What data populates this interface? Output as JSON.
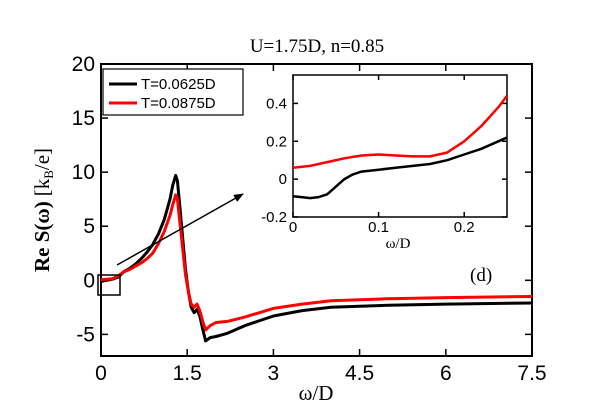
{
  "chart_data": [
    {
      "type": "line",
      "panel_label": "(d)",
      "title": "U=1.75D, n=0.85",
      "xlabel": "ω/D",
      "ylabel_main": "Re S(ω)",
      "ylabel_unit": "[k",
      "ylabel_sub": "B",
      "ylabel_end": "/e]",
      "xlim": [
        0,
        7.5
      ],
      "ylim": [
        -7,
        20
      ],
      "xticks": [
        0,
        1.5,
        3,
        4.5,
        6,
        7.5
      ],
      "xtick_labels": [
        "0",
        "1.5",
        "3",
        "4.5",
        "6",
        "7.5"
      ],
      "yticks": [
        -5,
        0,
        5,
        10,
        15,
        20
      ],
      "ytick_labels": [
        "-5",
        "0",
        "5",
        "10",
        "15",
        "20"
      ],
      "legend": "top-left",
      "series": [
        {
          "name": "T=0.0625D",
          "color": "#000000",
          "points": [
            [
              0,
              -0.1
            ],
            [
              0.1,
              0
            ],
            [
              0.2,
              0.1
            ],
            [
              0.3,
              0.3
            ],
            [
              0.4,
              0.8
            ],
            [
              0.5,
              1.1
            ],
            [
              0.6,
              1.5
            ],
            [
              0.7,
              2
            ],
            [
              0.8,
              2.6
            ],
            [
              0.9,
              3.3
            ],
            [
              1.0,
              4.3
            ],
            [
              1.1,
              5.6
            ],
            [
              1.2,
              7.5
            ],
            [
              1.25,
              8.8
            ],
            [
              1.3,
              9.7
            ],
            [
              1.33,
              9.2
            ],
            [
              1.37,
              7
            ],
            [
              1.42,
              4
            ],
            [
              1.47,
              1
            ],
            [
              1.52,
              -1
            ],
            [
              1.57,
              -2.5
            ],
            [
              1.62,
              -3
            ],
            [
              1.67,
              -2.7
            ],
            [
              1.72,
              -3.3
            ],
            [
              1.77,
              -4.5
            ],
            [
              1.82,
              -5.6
            ],
            [
              1.9,
              -5.3
            ],
            [
              2.0,
              -5.2
            ],
            [
              2.2,
              -4.9
            ],
            [
              2.5,
              -4.2
            ],
            [
              3.0,
              -3.3
            ],
            [
              3.5,
              -2.8
            ],
            [
              4.0,
              -2.5
            ],
            [
              4.5,
              -2.4
            ],
            [
              5.0,
              -2.3
            ],
            [
              6.0,
              -2.2
            ],
            [
              7.5,
              -2.1
            ]
          ]
        },
        {
          "name": "T=0.0875D",
          "color": "#ff0000",
          "points": [
            [
              0,
              0.05
            ],
            [
              0.1,
              0.1
            ],
            [
              0.2,
              0.15
            ],
            [
              0.3,
              0.4
            ],
            [
              0.4,
              0.8
            ],
            [
              0.5,
              1.0
            ],
            [
              0.6,
              1.3
            ],
            [
              0.7,
              1.6
            ],
            [
              0.8,
              2.0
            ],
            [
              0.9,
              2.5
            ],
            [
              1.0,
              3.4
            ],
            [
              1.1,
              4.5
            ],
            [
              1.2,
              6.0
            ],
            [
              1.25,
              7.0
            ],
            [
              1.3,
              7.9
            ],
            [
              1.33,
              7.5
            ],
            [
              1.37,
              5.5
            ],
            [
              1.42,
              3
            ],
            [
              1.47,
              0.5
            ],
            [
              1.52,
              -1
            ],
            [
              1.57,
              -2.2
            ],
            [
              1.62,
              -2.5
            ],
            [
              1.67,
              -2.2
            ],
            [
              1.72,
              -2.8
            ],
            [
              1.77,
              -3.8
            ],
            [
              1.82,
              -4.6
            ],
            [
              1.9,
              -4.2
            ],
            [
              2.0,
              -3.9
            ],
            [
              2.2,
              -3.8
            ],
            [
              2.5,
              -3.4
            ],
            [
              3.0,
              -2.6
            ],
            [
              3.5,
              -2.2
            ],
            [
              4.0,
              -1.9
            ],
            [
              4.5,
              -1.8
            ],
            [
              5.0,
              -1.7
            ],
            [
              6.0,
              -1.6
            ],
            [
              7.5,
              -1.5
            ]
          ]
        }
      ]
    },
    {
      "type": "line",
      "role": "inset",
      "xlabel": "ω/D",
      "xlim": [
        0,
        0.25
      ],
      "ylim": [
        -0.2,
        0.55
      ],
      "xticks": [
        0,
        0.1,
        0.2
      ],
      "xtick_labels": [
        "0",
        "0.1",
        "0.2"
      ],
      "yticks": [
        -0.2,
        0,
        0.2,
        0.4
      ],
      "ytick_labels": [
        "-0.2",
        "0",
        "0.2",
        "0.4"
      ],
      "series": [
        {
          "name": "T=0.0625D",
          "color": "#000000",
          "points": [
            [
              0,
              -0.09
            ],
            [
              0.01,
              -0.095
            ],
            [
              0.02,
              -0.1
            ],
            [
              0.03,
              -0.095
            ],
            [
              0.04,
              -0.08
            ],
            [
              0.05,
              -0.04
            ],
            [
              0.06,
              0
            ],
            [
              0.07,
              0.025
            ],
            [
              0.08,
              0.04
            ],
            [
              0.1,
              0.05
            ],
            [
              0.12,
              0.06
            ],
            [
              0.14,
              0.07
            ],
            [
              0.16,
              0.08
            ],
            [
              0.18,
              0.1
            ],
            [
              0.2,
              0.13
            ],
            [
              0.22,
              0.16
            ],
            [
              0.24,
              0.2
            ],
            [
              0.25,
              0.22
            ]
          ]
        },
        {
          "name": "T=0.0875D",
          "color": "#ff0000",
          "points": [
            [
              0,
              0.06
            ],
            [
              0.02,
              0.07
            ],
            [
              0.04,
              0.09
            ],
            [
              0.06,
              0.11
            ],
            [
              0.08,
              0.125
            ],
            [
              0.1,
              0.13
            ],
            [
              0.12,
              0.125
            ],
            [
              0.14,
              0.12
            ],
            [
              0.16,
              0.12
            ],
            [
              0.18,
              0.14
            ],
            [
              0.2,
              0.2
            ],
            [
              0.22,
              0.28
            ],
            [
              0.24,
              0.38
            ],
            [
              0.25,
              0.44
            ]
          ]
        }
      ]
    }
  ]
}
